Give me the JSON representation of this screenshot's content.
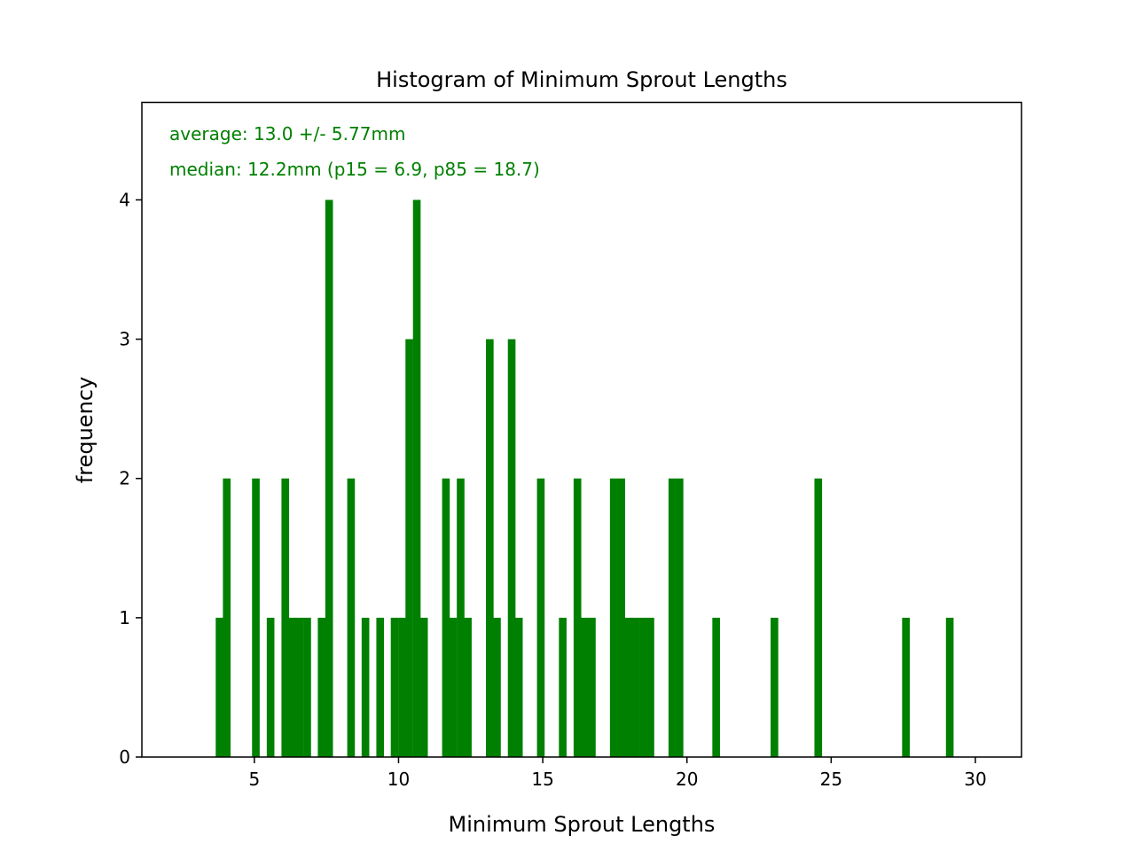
{
  "chart_data": {
    "type": "bar",
    "title": "Histogram of Minimum Sprout Lengths",
    "xlabel": "Minimum Sprout Lengths",
    "ylabel": "frequency",
    "xlim": [
      1.1,
      31.6
    ],
    "ylim": [
      0,
      4.7
    ],
    "xticks": [
      5,
      10,
      15,
      20,
      25,
      30
    ],
    "yticks": [
      0,
      1,
      2,
      3,
      4
    ],
    "bin_width": 0.253,
    "bar_color": "#008000",
    "annotation_color": "#008000",
    "annotations": [
      "average: 13.0 +/-  5.77mm",
      "median: 12.2mm  (p15 =  6.9, p85 = 18.7)"
    ],
    "bars": [
      {
        "x": 3.66,
        "value": 1
      },
      {
        "x": 3.91,
        "value": 2
      },
      {
        "x": 4.92,
        "value": 2
      },
      {
        "x": 5.43,
        "value": 1
      },
      {
        "x": 5.94,
        "value": 2
      },
      {
        "x": 6.19,
        "value": 1
      },
      {
        "x": 6.44,
        "value": 1
      },
      {
        "x": 6.7,
        "value": 1
      },
      {
        "x": 7.2,
        "value": 1
      },
      {
        "x": 7.46,
        "value": 4
      },
      {
        "x": 8.22,
        "value": 2
      },
      {
        "x": 8.72,
        "value": 1
      },
      {
        "x": 9.23,
        "value": 1
      },
      {
        "x": 9.73,
        "value": 1
      },
      {
        "x": 9.99,
        "value": 1
      },
      {
        "x": 10.24,
        "value": 3
      },
      {
        "x": 10.5,
        "value": 4
      },
      {
        "x": 10.75,
        "value": 1
      },
      {
        "x": 11.51,
        "value": 2
      },
      {
        "x": 11.76,
        "value": 1
      },
      {
        "x": 12.02,
        "value": 2
      },
      {
        "x": 12.27,
        "value": 1
      },
      {
        "x": 13.03,
        "value": 3
      },
      {
        "x": 13.28,
        "value": 1
      },
      {
        "x": 13.79,
        "value": 3
      },
      {
        "x": 14.04,
        "value": 1
      },
      {
        "x": 14.8,
        "value": 2
      },
      {
        "x": 15.56,
        "value": 1
      },
      {
        "x": 16.07,
        "value": 2
      },
      {
        "x": 16.32,
        "value": 1
      },
      {
        "x": 16.57,
        "value": 1
      },
      {
        "x": 17.33,
        "value": 2
      },
      {
        "x": 17.59,
        "value": 2
      },
      {
        "x": 17.84,
        "value": 1
      },
      {
        "x": 18.09,
        "value": 1
      },
      {
        "x": 18.35,
        "value": 1
      },
      {
        "x": 18.6,
        "value": 1
      },
      {
        "x": 19.36,
        "value": 2
      },
      {
        "x": 19.61,
        "value": 2
      },
      {
        "x": 20.88,
        "value": 1
      },
      {
        "x": 22.9,
        "value": 1
      },
      {
        "x": 24.42,
        "value": 2
      },
      {
        "x": 27.46,
        "value": 1
      },
      {
        "x": 28.98,
        "value": 1
      }
    ]
  }
}
